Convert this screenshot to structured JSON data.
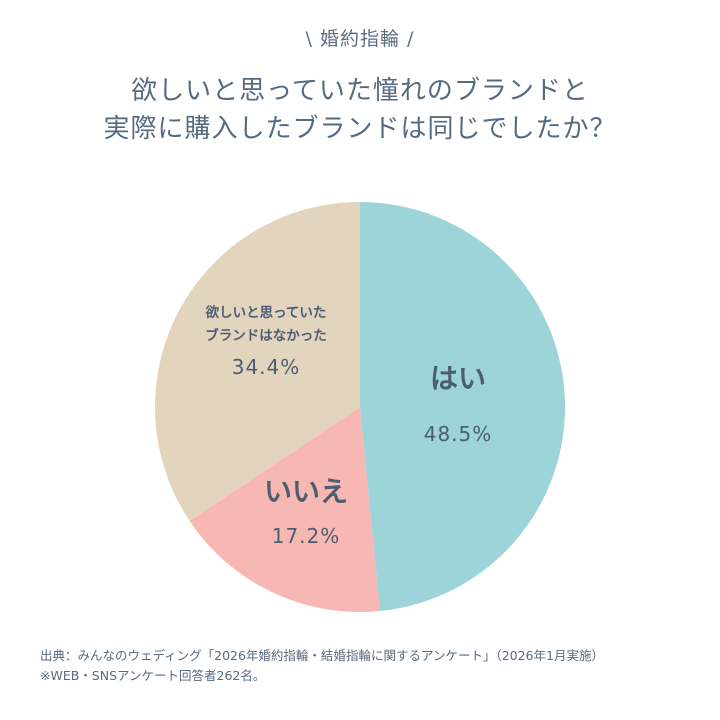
{
  "header": {
    "tag": "\\ 婚約指輪 /",
    "title_line1": "欲しいと思っていた憧れのブランドと",
    "title_line2": "実際に購入したブランドは同じでしたか？"
  },
  "chart_data": {
    "type": "pie",
    "start_angle_deg": 0,
    "direction": "clockwise",
    "slices": [
      {
        "label": "はい",
        "value": 48.5,
        "value_label": "48.5%",
        "color": "#9cd4d9"
      },
      {
        "label": "いいえ",
        "value": 17.2,
        "value_label": "17.2%",
        "color": "#f7b8b4"
      },
      {
        "label_lines": [
          "欲しいと思っていた",
          "ブランドはなかった"
        ],
        "value": 34.4,
        "value_label": "34.4%",
        "color": "#e3d5bd"
      }
    ],
    "legend": "none"
  },
  "footer": {
    "source_line1": "出典：みんなのウェディング「2026年婚約指輪・結婚指輪に関するアンケート」（2026年1月実施）",
    "source_line2": "※WEB・SNSアンケート回答者262名。"
  },
  "colors": {
    "text": "#566a80",
    "label_dark": "#4c5d72"
  }
}
